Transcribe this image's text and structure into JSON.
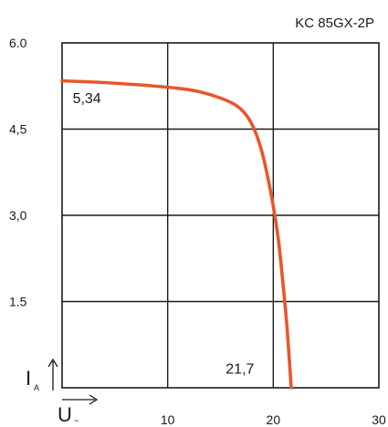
{
  "chart_data": {
    "type": "line",
    "title": "KC 85GX-2P",
    "xlabel": "U",
    "xlabel_sub": "~",
    "ylabel": "I",
    "ylabel_sub": "A",
    "xlim": [
      0,
      30
    ],
    "ylim": [
      0,
      6.0
    ],
    "x_ticks": [
      {
        "value": 10,
        "label": "10"
      },
      {
        "value": 20,
        "label": "20"
      },
      {
        "value": 30,
        "label": "30"
      }
    ],
    "y_ticks": [
      {
        "value": 1.5,
        "label": "1.5"
      },
      {
        "value": 3.0,
        "label": "3,0"
      },
      {
        "value": 4.5,
        "label": "4,5"
      },
      {
        "value": 6.0,
        "label": "6.0"
      }
    ],
    "grid": true,
    "series": [
      {
        "color": "#e8572a",
        "points": [
          [
            0,
            5.34
          ],
          [
            4,
            5.31
          ],
          [
            8,
            5.26
          ],
          [
            11,
            5.21
          ],
          [
            13,
            5.15
          ],
          [
            15,
            5.04
          ],
          [
            16.5,
            4.91
          ],
          [
            17.5,
            4.73
          ],
          [
            18.3,
            4.45
          ],
          [
            19,
            4.05
          ],
          [
            19.6,
            3.55
          ],
          [
            20.1,
            3.05
          ],
          [
            20.5,
            2.55
          ],
          [
            20.9,
            1.85
          ],
          [
            21.3,
            1.05
          ],
          [
            21.7,
            0
          ]
        ]
      }
    ],
    "annotations": [
      {
        "text": "5,34",
        "x": 1.0,
        "y": 4.95
      },
      {
        "text": "21,7",
        "x": 15.5,
        "y": 0.25
      }
    ]
  }
}
